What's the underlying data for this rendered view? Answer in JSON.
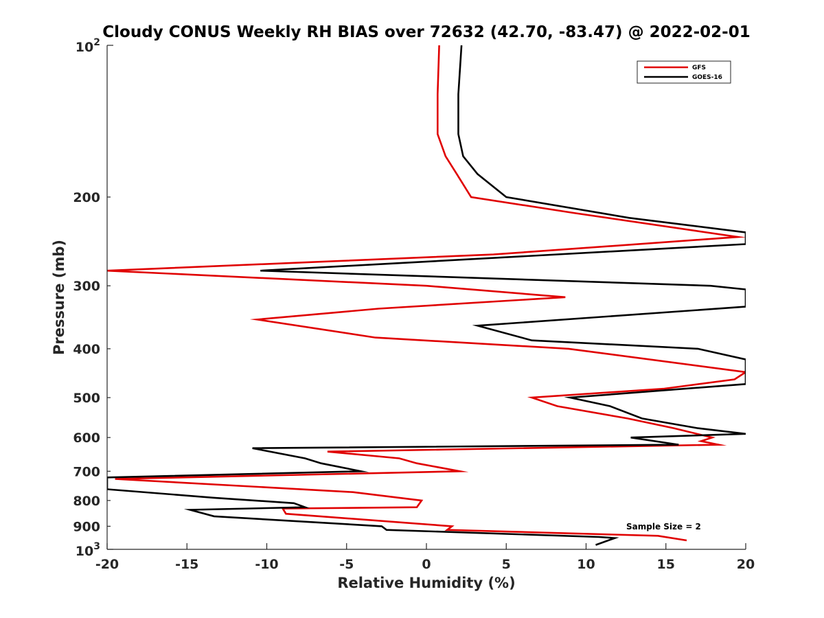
{
  "chart_data": {
    "type": "line",
    "title": "Cloudy CONUS Weekly RH BIAS over 72632 (42.70, -83.47) @ 2022-02-01",
    "xlabel": "Relative Humidity (%)",
    "ylabel": "Pressure (mb)",
    "xlim": [
      -20,
      20
    ],
    "ylim": [
      100,
      1000
    ],
    "y_scale": "log",
    "y_reversed": true,
    "grid": false,
    "legend_position": "top-right",
    "x_ticks": [
      -20,
      -15,
      -10,
      -5,
      0,
      5,
      10,
      15,
      20
    ],
    "x_tick_labels": [
      "-20",
      "-15",
      "-10",
      "-5",
      "0",
      "5",
      "10",
      "15",
      "20"
    ],
    "y_ticks": [
      200,
      300,
      400,
      500,
      600,
      700,
      800,
      900
    ],
    "y_tick_labels": [
      "200",
      "300",
      "400",
      "500",
      "600",
      "700",
      "800",
      "900"
    ],
    "y_tick_minor_labels": [],
    "y_decade_ticks": [
      100,
      1000
    ],
    "y_decade_labels": [
      {
        "base": "10",
        "exp": "2"
      },
      {
        "base": "10",
        "exp": "3"
      }
    ],
    "series": [
      {
        "name": "GFS",
        "color": "#e00000",
        "points": [
          [
            0.8,
            100
          ],
          [
            0.7,
            125
          ],
          [
            0.7,
            150
          ],
          [
            1.2,
            166
          ],
          [
            1.9,
            180
          ],
          [
            2.8,
            200
          ],
          [
            9.2,
            215
          ],
          [
            19.5,
            240
          ],
          [
            4.2,
            260
          ],
          [
            -20.0,
            280
          ],
          [
            0.0,
            300
          ],
          [
            8.7,
            316
          ],
          [
            -3.0,
            333
          ],
          [
            -10.6,
            350
          ],
          [
            -3.2,
            380
          ],
          [
            8.9,
            400
          ],
          [
            20.0,
            445
          ],
          [
            19.3,
            460
          ],
          [
            14.9,
            480
          ],
          [
            6.6,
            500
          ],
          [
            8.2,
            520
          ],
          [
            12.6,
            550
          ],
          [
            15.5,
            575
          ],
          [
            17.9,
            600
          ],
          [
            17.2,
            610
          ],
          [
            18.3,
            620
          ],
          [
            -6.2,
            640
          ],
          [
            -1.7,
            660
          ],
          [
            -0.6,
            675
          ],
          [
            2.1,
            700
          ],
          [
            -19.5,
            725
          ],
          [
            -4.6,
            770
          ],
          [
            -0.3,
            800
          ],
          [
            -0.6,
            825
          ],
          [
            -9.0,
            830
          ],
          [
            -8.8,
            850
          ],
          [
            1.6,
            900
          ],
          [
            1.3,
            915
          ],
          [
            14.5,
            940
          ],
          [
            16.3,
            960
          ]
        ]
      },
      {
        "name": "GOES-16",
        "color": "#000000",
        "points": [
          [
            2.2,
            100
          ],
          [
            2.0,
            125
          ],
          [
            2.0,
            150
          ],
          [
            2.3,
            166
          ],
          [
            3.2,
            180
          ],
          [
            5.0,
            200
          ],
          [
            12.7,
            220
          ],
          [
            20.0,
            235
          ],
          [
            20.0,
            248
          ],
          [
            -10.4,
            280
          ],
          [
            17.8,
            300
          ],
          [
            20.0,
            305
          ],
          [
            20.0,
            330
          ],
          [
            3.2,
            360
          ],
          [
            6.6,
            385
          ],
          [
            17.0,
            400
          ],
          [
            20.0,
            420
          ],
          [
            20.0,
            470
          ],
          [
            9.0,
            500
          ],
          [
            11.5,
            520
          ],
          [
            13.5,
            550
          ],
          [
            17.0,
            575
          ],
          [
            20.0,
            590
          ],
          [
            12.8,
            600
          ],
          [
            15.8,
            620
          ],
          [
            -10.9,
            630
          ],
          [
            -7.6,
            660
          ],
          [
            -6.6,
            675
          ],
          [
            -4.1,
            700
          ],
          [
            -20.0,
            720
          ],
          [
            -20.0,
            760
          ],
          [
            -13.3,
            790
          ],
          [
            -8.3,
            810
          ],
          [
            -7.6,
            825
          ],
          [
            -14.8,
            835
          ],
          [
            -13.3,
            860
          ],
          [
            -2.8,
            900
          ],
          [
            -2.5,
            915
          ],
          [
            10.8,
            945
          ],
          [
            11.8,
            950
          ],
          [
            10.6,
            980
          ]
        ]
      }
    ],
    "annotations": [
      {
        "text": "Sample Size = 2"
      }
    ]
  }
}
